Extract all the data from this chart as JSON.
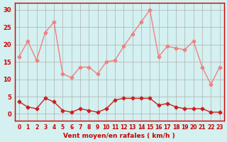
{
  "x": [
    0,
    1,
    2,
    3,
    4,
    5,
    6,
    7,
    8,
    9,
    10,
    11,
    12,
    13,
    14,
    15,
    16,
    17,
    18,
    19,
    20,
    21,
    22,
    23
  ],
  "rafales": [
    16.5,
    21,
    15.5,
    23.5,
    26.5,
    11.5,
    10.5,
    13.5,
    13.5,
    11.5,
    15,
    15.5,
    19.5,
    23,
    26.5,
    30,
    16.5,
    19.5,
    19,
    18.5,
    21,
    13.5,
    8.5,
    13.5
  ],
  "moyen": [
    3.5,
    2,
    1.5,
    4.5,
    3.5,
    1,
    0.5,
    1.5,
    1,
    0.5,
    1.5,
    4,
    4.5,
    4.5,
    4.5,
    4.5,
    2.5,
    3,
    2,
    1.5,
    1.5,
    1.5,
    0.5,
    0.5
  ],
  "bg_color": "#d4f0f0",
  "line_color_rafales": "#f08080",
  "line_color_moyen": "#cc2020",
  "grid_color": "#b0b0b0",
  "xlabel": "Vent moyen/en rafales ( km/h )",
  "ylim": [
    -2,
    32
  ],
  "yticks": [
    0,
    5,
    10,
    15,
    20,
    25,
    30
  ],
  "xticks": [
    0,
    1,
    2,
    3,
    4,
    5,
    6,
    7,
    8,
    9,
    10,
    11,
    12,
    13,
    14,
    15,
    16,
    17,
    18,
    19,
    20,
    21,
    22,
    23
  ]
}
